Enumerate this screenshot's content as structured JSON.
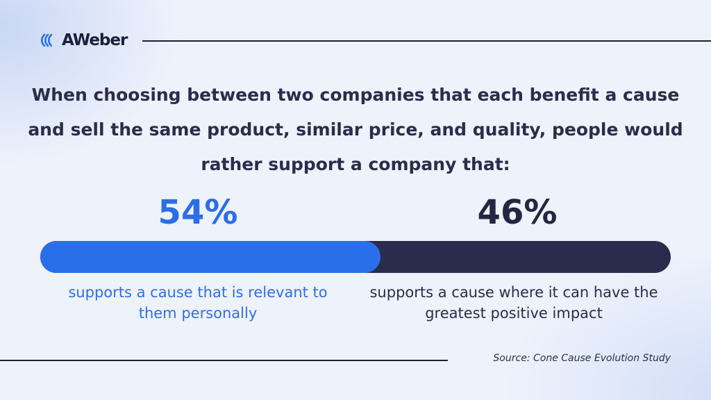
{
  "brand": {
    "logo_text": "AWeber"
  },
  "headline": "When choosing between two companies that each benefit a cause and sell the same product, similar price, and quality, people would rather support a company that:",
  "chart_data": {
    "type": "bar",
    "stacked": true,
    "orientation": "horizontal",
    "categories": [
      "supports a cause that is relevant to them personally",
      "supports a cause where it can have the greatest positive impact"
    ],
    "values": [
      54,
      46
    ],
    "value_labels": [
      "54%",
      "46%"
    ],
    "colors": [
      "#2a6fea",
      "#2a2c4d"
    ]
  },
  "source": "Source: Cone Cause Evolution Study"
}
